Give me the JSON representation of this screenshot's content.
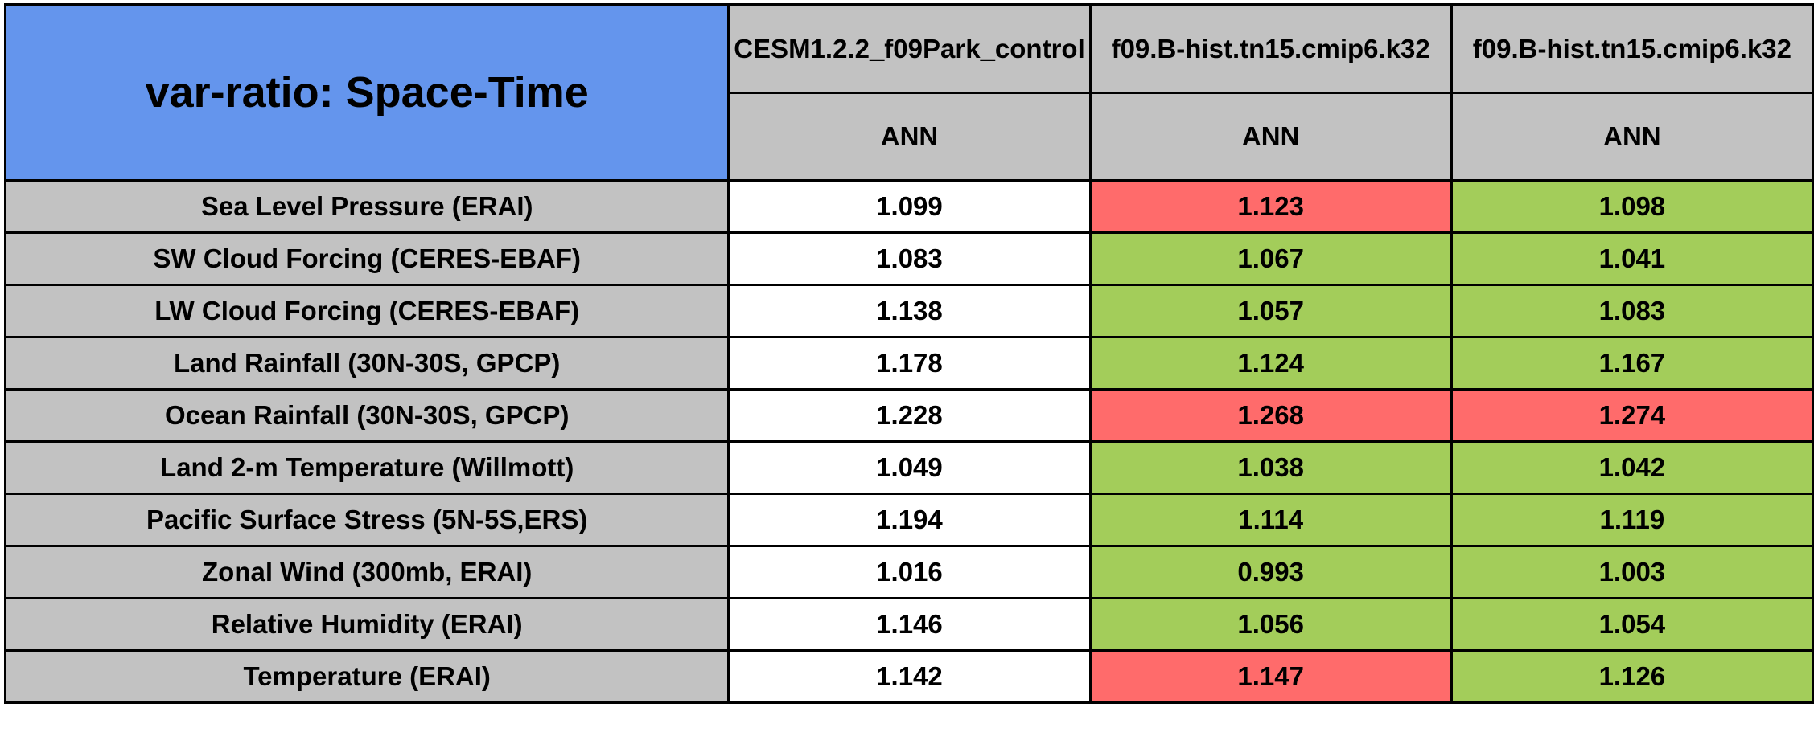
{
  "chart_data": {
    "type": "table",
    "title": "var-ratio: Space-Time",
    "columns": [
      {
        "model": "CESM1.2.2_f09Park_control",
        "season": "ANN"
      },
      {
        "model": "f09.B-hist.tn15.cmip6.k32",
        "season": "ANN"
      },
      {
        "model": "f09.B-hist.tn15.cmip6.k32",
        "season": "ANN"
      }
    ],
    "rows": [
      {
        "label": "Sea Level Pressure (ERAI)",
        "values": [
          1.099,
          1.123,
          1.098
        ],
        "cell_colors": [
          "white",
          "red",
          "green"
        ]
      },
      {
        "label": "SW Cloud Forcing (CERES-EBAF)",
        "values": [
          1.083,
          1.067,
          1.041
        ],
        "cell_colors": [
          "white",
          "green",
          "green"
        ]
      },
      {
        "label": "LW Cloud Forcing (CERES-EBAF)",
        "values": [
          1.138,
          1.057,
          1.083
        ],
        "cell_colors": [
          "white",
          "green",
          "green"
        ]
      },
      {
        "label": "Land Rainfall (30N-30S, GPCP)",
        "values": [
          1.178,
          1.124,
          1.167
        ],
        "cell_colors": [
          "white",
          "green",
          "green"
        ]
      },
      {
        "label": "Ocean Rainfall (30N-30S, GPCP)",
        "values": [
          1.228,
          1.268,
          1.274
        ],
        "cell_colors": [
          "white",
          "red",
          "red"
        ]
      },
      {
        "label": "Land 2-m Temperature (Willmott)",
        "values": [
          1.049,
          1.038,
          1.042
        ],
        "cell_colors": [
          "white",
          "green",
          "green"
        ]
      },
      {
        "label": "Pacific Surface Stress (5N-5S,ERS)",
        "values": [
          1.194,
          1.114,
          1.119
        ],
        "cell_colors": [
          "white",
          "green",
          "green"
        ]
      },
      {
        "label": "Zonal Wind (300mb, ERAI)",
        "values": [
          1.016,
          0.993,
          1.003
        ],
        "cell_colors": [
          "white",
          "green",
          "green"
        ]
      },
      {
        "label": "Relative Humidity (ERAI)",
        "values": [
          1.146,
          1.056,
          1.054
        ],
        "cell_colors": [
          "white",
          "green",
          "green"
        ]
      },
      {
        "label": "Temperature (ERAI)",
        "values": [
          1.142,
          1.147,
          1.126
        ],
        "cell_colors": [
          "white",
          "red",
          "green"
        ]
      }
    ],
    "colors": {
      "title_blue": "#6495ED",
      "header_gray": "#C2C2C2",
      "cell_white": "#FFFFFF",
      "cell_green": "#A3CD5A",
      "cell_red": "#FF6B6B",
      "border": "#000000",
      "text": "#000000"
    },
    "layout": {
      "value_decimals": 3,
      "grid": "on",
      "legend": "none"
    }
  }
}
